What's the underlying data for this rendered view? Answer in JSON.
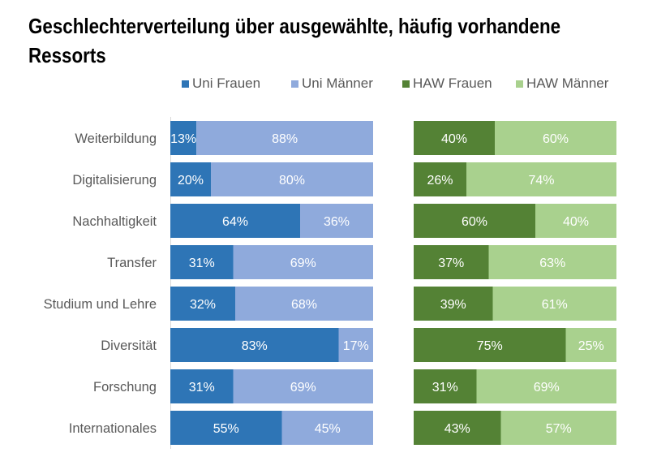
{
  "chart_data": {
    "type": "bar",
    "stacked": "percent",
    "orientation": "horizontal",
    "title": "Geschlechterverteilung über ausgewählte, häufig vorhandene Ressorts",
    "title_lines": [
      "Geschlechterverteilung über ausgewählte, häufig vorhandene",
      "Ressorts"
    ],
    "legend_position": "top-right",
    "categories": [
      "Weiterbildung",
      "Digitalisierung",
      "Nachhaltigkeit",
      "Transfer",
      "Studium und Lehre",
      "Diversität",
      "Forschung",
      "Internationales"
    ],
    "panels": [
      {
        "name": "Uni",
        "series": [
          {
            "name": "Uni Frauen",
            "color": "#2E75B6",
            "values": [
              13,
              20,
              64,
              31,
              32,
              83,
              31,
              55
            ]
          },
          {
            "name": "Uni Männer",
            "color": "#8FAADC",
            "values": [
              88,
              80,
              36,
              69,
              68,
              17,
              69,
              45
            ]
          }
        ]
      },
      {
        "name": "HAW",
        "series": [
          {
            "name": "HAW Frauen",
            "color": "#548235",
            "values": [
              40,
              26,
              60,
              37,
              39,
              75,
              31,
              43
            ]
          },
          {
            "name": "HAW Männer",
            "color": "#A9D18E",
            "values": [
              60,
              74,
              40,
              63,
              61,
              25,
              69,
              57
            ]
          }
        ]
      }
    ],
    "value_format": "{v}%",
    "xlim": [
      0,
      100
    ]
  }
}
